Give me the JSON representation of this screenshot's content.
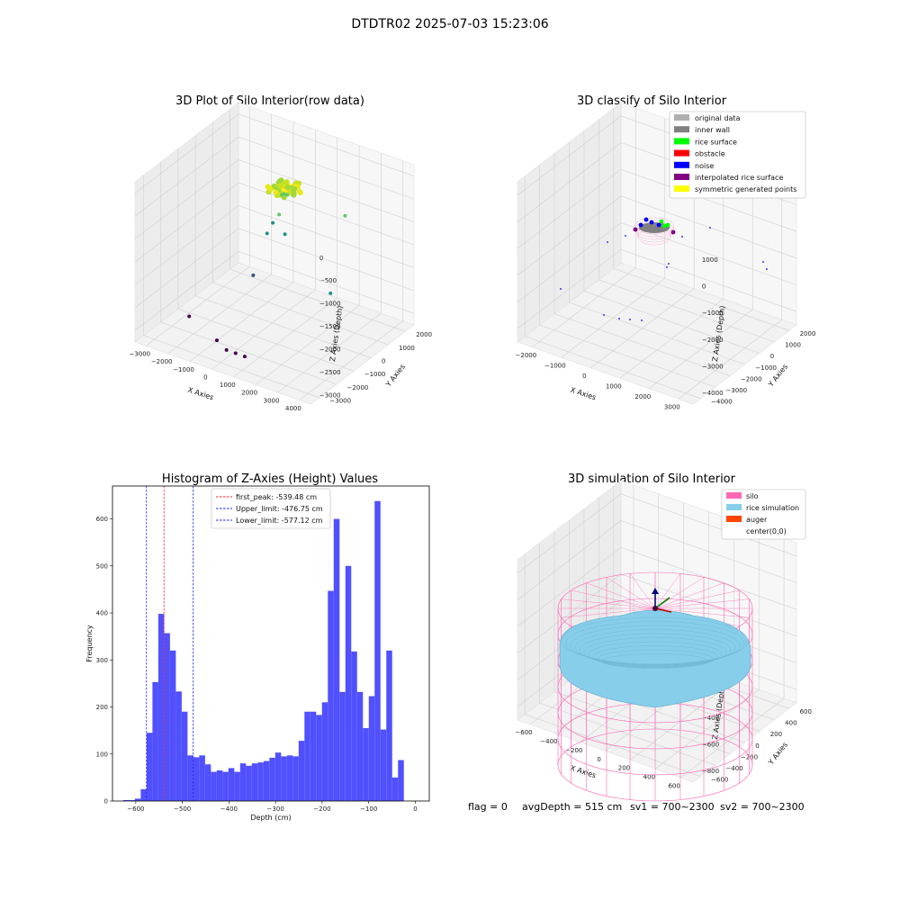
{
  "figure": {
    "suptitle": "DTDTR02 2025-07-03 15:23:06",
    "info": {
      "flag": "flag = 0",
      "avg_depth": "avgDepth = 515 cm",
      "sv1": "sv1 = 700~2300",
      "sv2": "sv2 = 700~2300"
    }
  },
  "colors": {
    "hist_bar": "#5050ff",
    "peak_line": "#ff2020",
    "limit_line": "#2020ff",
    "silo": "#ff69b4",
    "rice": "#87ceeb",
    "auger": "#ff4500",
    "pane": "#f4f4f4",
    "grid": "#d0d0d0"
  },
  "chart_data": [
    {
      "type": "scatter",
      "projection": "3d",
      "title": "3D Plot of Silo Interior(row data)",
      "xlabel": "X Axies",
      "ylabel": "Y Axies",
      "zlabel": "Z Axies (Depth)",
      "x_ticks": [
        "−3000",
        "−2000",
        "−1000",
        "0",
        "1000",
        "2000",
        "3000",
        "4000"
      ],
      "y_ticks": [
        "−3000",
        "−2000",
        "−1000",
        "0",
        "1000",
        "2000"
      ],
      "z_ticks": [
        "0",
        "−500",
        "−1000",
        "−1500",
        "−2000",
        "−2500",
        "−3000"
      ],
      "colormap": "viridis",
      "points": [
        {
          "x": 200,
          "y": 300,
          "z": -500
        },
        {
          "x": 300,
          "y": 200,
          "z": -520
        },
        {
          "x": 100,
          "y": 400,
          "z": -540
        },
        {
          "x": 250,
          "y": 250,
          "z": -560
        },
        {
          "x": 350,
          "y": 300,
          "z": -580
        },
        {
          "x": 150,
          "y": 250,
          "z": -600
        },
        {
          "x": 0,
          "y": 300,
          "z": -1100
        },
        {
          "x": -200,
          "y": 200,
          "z": -1300
        },
        {
          "x": -300,
          "y": 0,
          "z": -1500
        },
        {
          "x": 100,
          "y": 500,
          "z": -1600
        },
        {
          "x": 2200,
          "y": 1200,
          "z": -1000
        },
        {
          "x": 3100,
          "y": -800,
          "z": -2000
        },
        {
          "x": -600,
          "y": -400,
          "z": -2400
        },
        {
          "x": -2100,
          "y": -2100,
          "z": -3100
        },
        {
          "x": -500,
          "y": -2600,
          "z": -3200
        },
        {
          "x": 0,
          "y": -2700,
          "z": -3300
        },
        {
          "x": 400,
          "y": -2700,
          "z": -3300
        },
        {
          "x": 800,
          "y": -2700,
          "z": -3300
        }
      ]
    },
    {
      "type": "scatter",
      "projection": "3d",
      "title": "3D classify of Silo Interior",
      "xlabel": "X Axies",
      "ylabel": "Y Axies",
      "zlabel": "Z Axies (Depth)",
      "x_ticks": [
        "−2000",
        "−1000",
        "0",
        "1000",
        "2000",
        "3000"
      ],
      "y_ticks": [
        "−4000",
        "−3000",
        "−2000",
        "−1000",
        "0",
        "1000",
        "2000"
      ],
      "z_ticks": [
        "1000",
        "0",
        "−1000",
        "−2000",
        "−3000",
        "−4000"
      ],
      "legend_position": "top-right",
      "legend": [
        {
          "label": "original data",
          "color": "#b0b0b0"
        },
        {
          "label": "inner wall",
          "color": "#808080"
        },
        {
          "label": "rice surface",
          "color": "#00ff00"
        },
        {
          "label": "obstacle",
          "color": "#ff0000"
        },
        {
          "label": "noise",
          "color": "#0000ff"
        },
        {
          "label": "interpolated rice surface",
          "color": "#800080"
        },
        {
          "label": "symmetric generated points",
          "color": "#ffff00"
        }
      ]
    },
    {
      "type": "bar",
      "title": "Histogram of Z-Axies (Height) Values",
      "xlabel": "Depth (cm)",
      "ylabel": "Frequency",
      "xlim": [
        -650,
        30
      ],
      "ylim": [
        0,
        670
      ],
      "x_ticks": [
        -600,
        -500,
        -400,
        -300,
        -200,
        -100,
        0
      ],
      "x_tick_labels": [
        "−600",
        "−500",
        "−400",
        "−300",
        "−200",
        "−100",
        "0"
      ],
      "y_ticks": [
        0,
        100,
        200,
        300,
        400,
        500,
        600
      ],
      "bin_edges_start": -627,
      "bin_width": 12.55,
      "values": [
        2,
        2,
        5,
        25,
        145,
        253,
        398,
        357,
        320,
        233,
        190,
        97,
        93,
        97,
        78,
        62,
        65,
        62,
        70,
        62,
        80,
        75,
        80,
        82,
        85,
        92,
        103,
        95,
        97,
        95,
        128,
        190,
        190,
        183,
        210,
        447,
        600,
        232,
        500,
        318,
        232,
        155,
        223,
        638,
        152,
        320,
        50,
        87
      ],
      "lines": [
        {
          "label": "first_peak: -539.48 cm",
          "x": -539.48,
          "color": "#ff2020"
        },
        {
          "label": "Upper_limit: -476.75 cm",
          "x": -476.75,
          "color": "#2020ff"
        },
        {
          "label": "Lower_limit: -577.12 cm",
          "x": -577.12,
          "color": "#2020ff"
        }
      ],
      "legend_position": "top-center"
    },
    {
      "type": "area",
      "projection": "3d",
      "title": "3D simulation of Silo Interior",
      "xlabel": "X Axies",
      "ylabel": "Y Axies",
      "zlabel": "Z Axies (Depth)",
      "x_ticks": [
        "−600",
        "−400",
        "−200",
        "0",
        "200",
        "400",
        "600"
      ],
      "y_ticks": [
        "−600",
        "−400",
        "−200",
        "0",
        "200",
        "400",
        "600"
      ],
      "z_ticks": [
        "200",
        "0",
        "−200",
        "−400",
        "−600",
        "−800"
      ],
      "legend_position": "top-right",
      "legend": [
        {
          "label": "silo",
          "color": "#ff69b4"
        },
        {
          "label": "rice simulation",
          "color": "#87ceeb"
        },
        {
          "label": "auger",
          "color": "#ff4500"
        },
        {
          "label": "center(0,0)",
          "color": ""
        }
      ]
    }
  ]
}
